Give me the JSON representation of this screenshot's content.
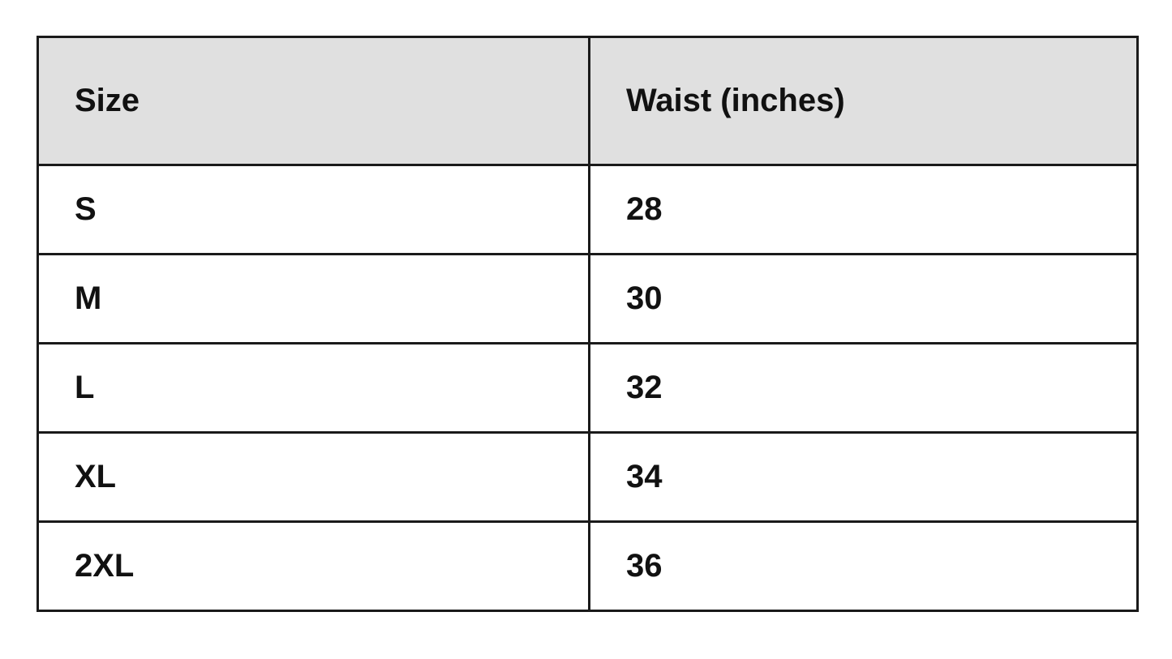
{
  "table": {
    "headers": [
      "Size",
      "Waist (inches)"
    ],
    "rows": [
      [
        "S",
        "28"
      ],
      [
        "M",
        "30"
      ],
      [
        "L",
        "32"
      ],
      [
        "XL",
        "34"
      ],
      [
        "2XL",
        "36"
      ]
    ],
    "header_bg": "#e0e0e0"
  }
}
